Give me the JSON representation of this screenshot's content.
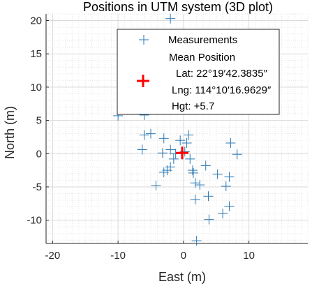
{
  "chart_data": {
    "type": "scatter",
    "title": "Positions in UTM system (3D plot)",
    "xlabel": "East (m)",
    "ylabel": "North (m)",
    "xlim": [
      -21,
      19
    ],
    "ylim": [
      -13.5,
      21
    ],
    "xticks": [
      -20,
      -10,
      0,
      10
    ],
    "yticks": [
      -10,
      -5,
      0,
      5,
      10,
      15,
      20
    ],
    "grid": "minor-dotted",
    "legend_position": "top-right",
    "series": [
      {
        "name": "Measurements",
        "marker": "plus",
        "color": "#2a78b4",
        "points": [
          [
            -2,
            20.3
          ],
          [
            -10,
            5.7
          ],
          [
            -6,
            5.8
          ],
          [
            -6,
            2.8
          ],
          [
            -5,
            3
          ],
          [
            -3,
            2.3
          ],
          [
            -6.3,
            0.6
          ],
          [
            -3.2,
            0.1
          ],
          [
            -2,
            0.6
          ],
          [
            -1.5,
            -0.8
          ],
          [
            -2.5,
            -2.5
          ],
          [
            -3,
            -2.8
          ],
          [
            -2,
            -2
          ],
          [
            -4.2,
            -4.8
          ],
          [
            -0.5,
            2
          ],
          [
            0.5,
            1.6
          ],
          [
            0.8,
            2.8
          ],
          [
            1,
            -0.8
          ],
          [
            1.4,
            -2.5
          ],
          [
            1.5,
            -2.9
          ],
          [
            1.8,
            -4.4
          ],
          [
            2.5,
            -4.7
          ],
          [
            1.8,
            -6.9
          ],
          [
            3.4,
            -1.8
          ],
          [
            5.2,
            -3.1
          ],
          [
            3.8,
            -6.4
          ],
          [
            6.5,
            -4.9
          ],
          [
            7,
            -3.5
          ],
          [
            7.2,
            1.6
          ],
          [
            8.2,
            -0.1
          ],
          [
            7,
            -7.9
          ],
          [
            6,
            -9
          ],
          [
            3.9,
            -9.9
          ],
          [
            2,
            -13.1
          ],
          [
            -1.2,
            0
          ],
          [
            0.2,
            0.3
          ]
        ]
      },
      {
        "name": "Mean Position",
        "marker": "plus",
        "color": "#ff0000",
        "points": [
          [
            -0.2,
            0.1
          ]
        ]
      }
    ],
    "legend": {
      "measurements_label": "Measurements",
      "mean_label": "Mean Position",
      "lat_line": "Lat: 22°19′42.3835″",
      "lng_line": "Lng: 114°10′16.9629″",
      "hgt_line": "Hgt: +5.7"
    }
  }
}
